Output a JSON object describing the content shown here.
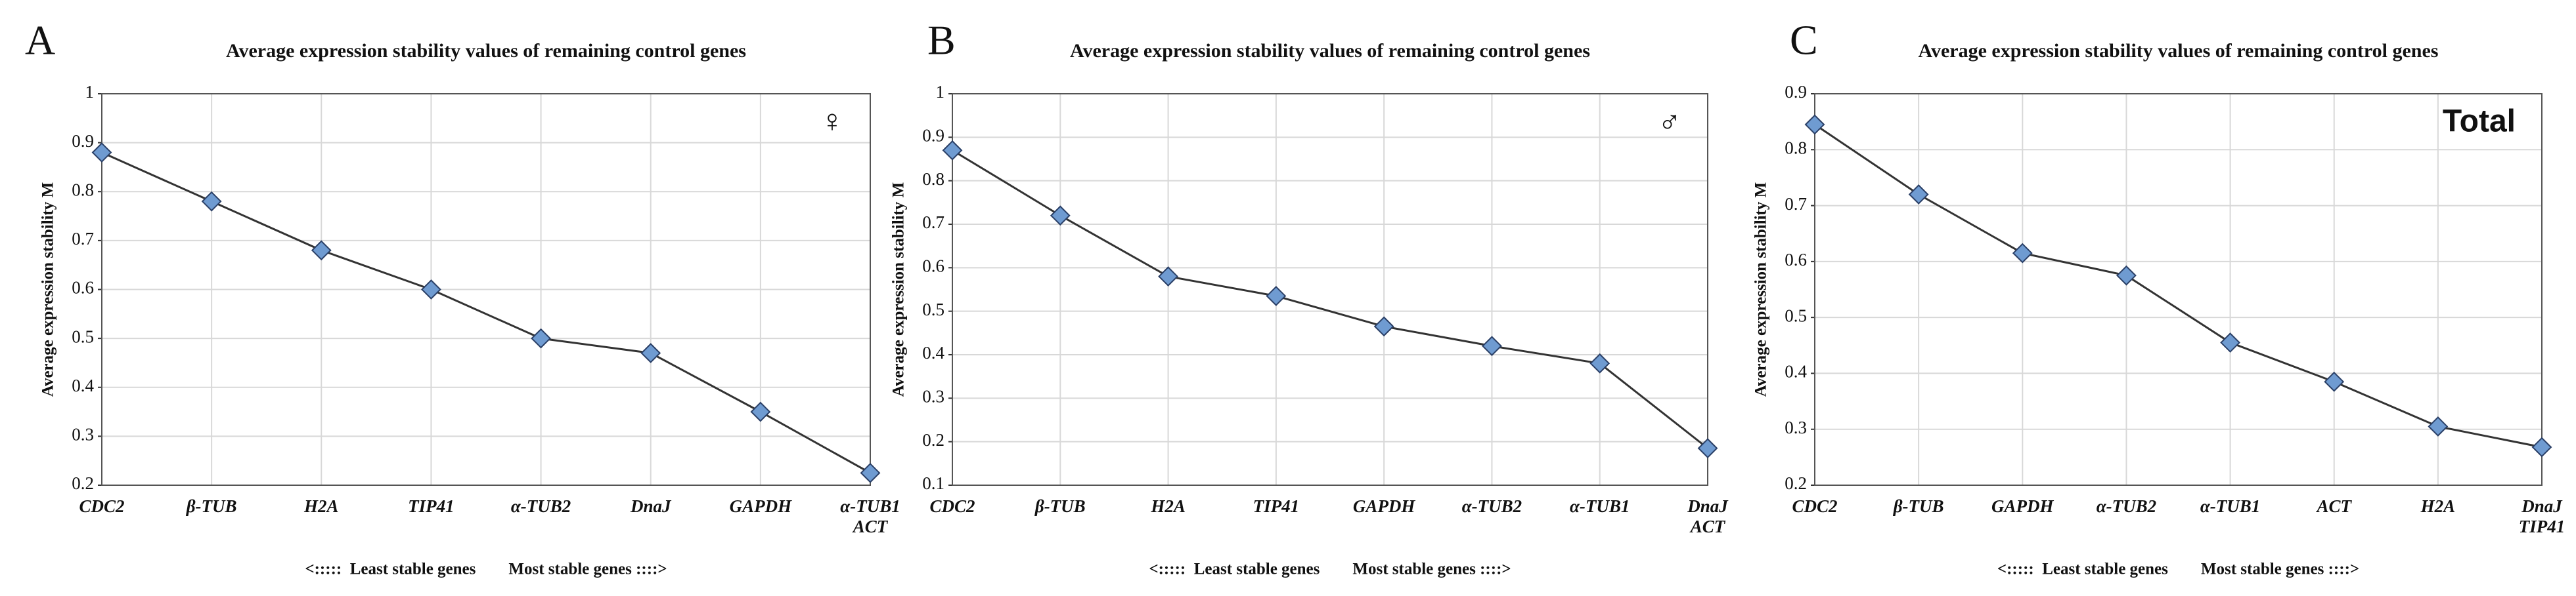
{
  "chart_data": [
    {
      "type": "line",
      "label": "A",
      "title": "Average expression stability values of remaining control genes",
      "ylabel": "Average expression stability M",
      "xlabel": "<:::::  Least stable genes        Most stable genes ::::>",
      "annotation": "♀",
      "categories": [
        "CDC2",
        "β-TUB",
        "H2A",
        "TIP41",
        "α-TUB2",
        "DnaJ",
        "GAPDH",
        "α-TUB1\nACT"
      ],
      "values": [
        0.88,
        0.78,
        0.68,
        0.6,
        0.5,
        0.47,
        0.35,
        0.225
      ],
      "color": "#6f9bd1",
      "ylim": [
        0.2,
        1
      ],
      "yticks": [
        0.2,
        0.3,
        0.4,
        0.5,
        0.6,
        0.7,
        0.8,
        0.9,
        1
      ],
      "grid": true
    },
    {
      "type": "line",
      "label": "B",
      "title": "Average expression stability values of remaining control genes",
      "ylabel": "Average expression stability M",
      "xlabel": "<:::::  Least stable genes        Most stable genes ::::>",
      "annotation": "♂",
      "categories": [
        "CDC2",
        "β-TUB",
        "H2A",
        "TIP41",
        "GAPDH",
        "α-TUB2",
        "α-TUB1",
        "DnaJ\nACT"
      ],
      "values": [
        0.87,
        0.72,
        0.58,
        0.535,
        0.465,
        0.42,
        0.38,
        0.185
      ],
      "color": "#6f9bd1",
      "ylim": [
        0.1,
        1
      ],
      "yticks": [
        0.1,
        0.2,
        0.3,
        0.4,
        0.5,
        0.6,
        0.7,
        0.8,
        0.9,
        1
      ],
      "grid": true
    },
    {
      "type": "line",
      "label": "C",
      "title": "Average expression stability values of remaining control genes",
      "ylabel": "Average expression stability M",
      "xlabel": "<:::::  Least stable genes        Most stable genes ::::>",
      "annotation": "Total",
      "categories": [
        "CDC2",
        "β-TUB",
        "GAPDH",
        "α-TUB2",
        "α-TUB1",
        "ACT",
        "H2A",
        "DnaJ\nTIP41"
      ],
      "values": [
        0.845,
        0.72,
        0.615,
        0.575,
        0.455,
        0.385,
        0.305,
        0.268
      ],
      "color": "#6f9bd1",
      "ylim": [
        0.2,
        0.9
      ],
      "yticks": [
        0.2,
        0.3,
        0.4,
        0.5,
        0.6,
        0.7,
        0.8,
        0.9
      ],
      "grid": true
    }
  ]
}
